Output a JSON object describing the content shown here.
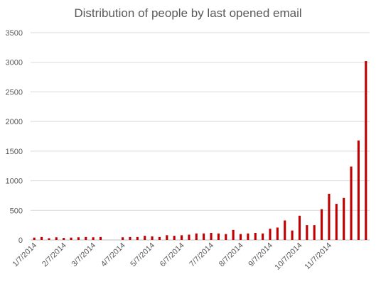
{
  "chart_data": {
    "type": "bar",
    "title": "Distribution of people by last opened email",
    "xlabel": "",
    "ylabel": "",
    "ylim": [
      0,
      3500
    ],
    "yticks": [
      0,
      500,
      1000,
      1500,
      2000,
      2500,
      3000,
      3500
    ],
    "grid": true,
    "legend": "none",
    "bar_color": "#C00000",
    "gridline_color": "#D9D9D9",
    "tick_label_color": "#595959",
    "x_tick_labels": [
      "1/7/2014",
      "2/7/2014",
      "3/7/2014",
      "4/7/2014",
      "5/7/2014",
      "6/7/2014",
      "7/7/2014",
      "8/7/2014",
      "9/7/2014",
      "10/7/2014",
      "11/7/2014"
    ],
    "x_tick_positions": [
      0,
      4,
      8,
      12,
      16,
      20,
      24,
      28,
      32,
      36,
      40
    ],
    "values": [
      40,
      50,
      30,
      45,
      35,
      40,
      45,
      50,
      45,
      50,
      0,
      0,
      45,
      50,
      50,
      70,
      60,
      50,
      80,
      70,
      80,
      90,
      110,
      110,
      120,
      110,
      100,
      170,
      100,
      110,
      120,
      110,
      190,
      210,
      330,
      160,
      410,
      250,
      250,
      520,
      780,
      610,
      710,
      1240,
      1680,
      3020
    ]
  }
}
